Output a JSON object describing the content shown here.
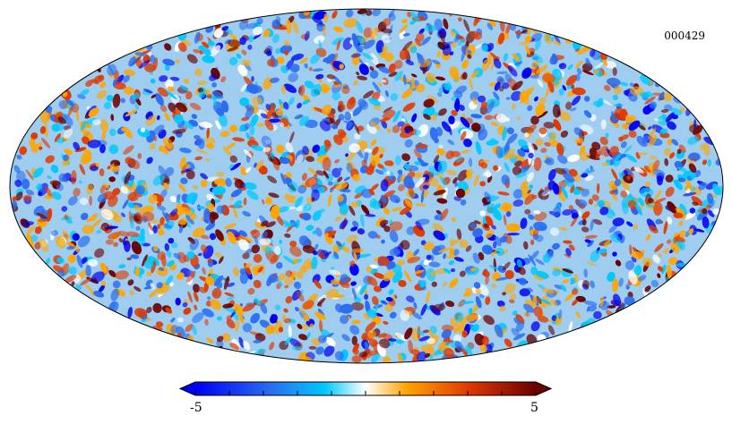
{
  "map": {
    "id": "000429",
    "projection": "mollweide",
    "description_hidden": false
  },
  "colorbar": {
    "min_label": "-5",
    "max_label": "5",
    "min": -5,
    "max": 5,
    "colors": [
      "#0000f0",
      "#2a6cf0",
      "#00c8ff",
      "#ffffff",
      "#ffa500",
      "#e03a00",
      "#6b0000"
    ]
  }
}
